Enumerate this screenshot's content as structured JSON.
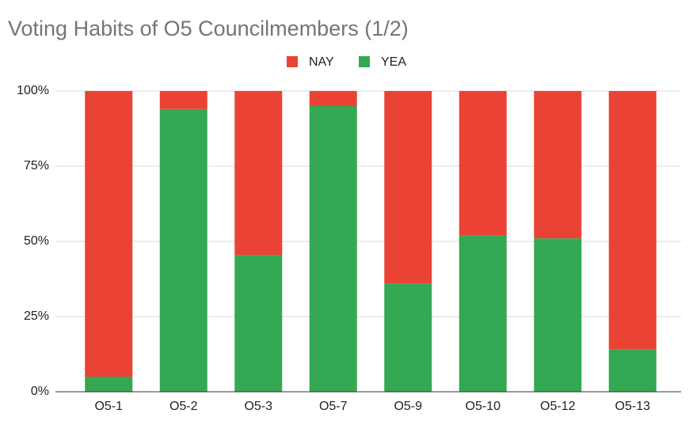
{
  "chart_data": {
    "type": "stacked_bar",
    "title": "Voting Habits of O5 Councilmembers (1/2)",
    "categories": [
      "O5-1",
      "O5-2",
      "O5-3",
      "O5-7",
      "O5-9",
      "O5-10",
      "O5-12",
      "O5-13"
    ],
    "series": [
      {
        "name": "NAY",
        "color": "#ea4335",
        "values": [
          95,
          6,
          54.5,
          5,
          64,
          48,
          49,
          86
        ]
      },
      {
        "name": "YEA",
        "color": "#34a853",
        "values": [
          5,
          94,
          45.5,
          95,
          36,
          52,
          51,
          14
        ]
      }
    ],
    "ylim": [
      0,
      100
    ],
    "yticks": [
      {
        "value": 0,
        "label": "0%"
      },
      {
        "value": 25,
        "label": "25%"
      },
      {
        "value": 50,
        "label": "50%"
      },
      {
        "value": 75,
        "label": "75%"
      },
      {
        "value": 100,
        "label": "100%"
      }
    ],
    "grid": true,
    "legend": "top"
  }
}
